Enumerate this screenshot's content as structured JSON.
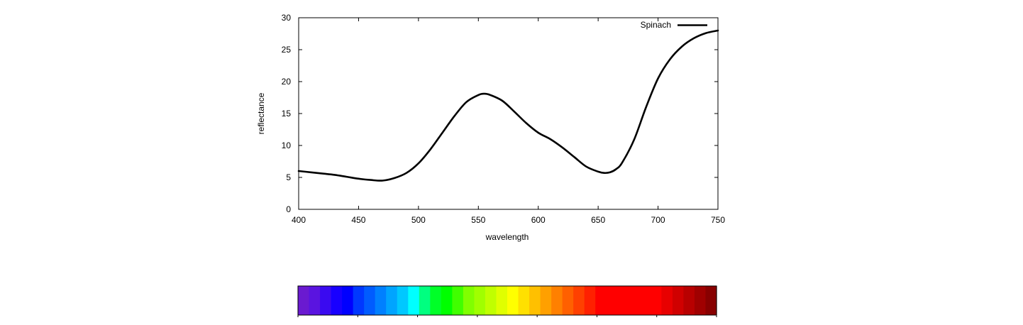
{
  "chart_data": {
    "type": "line",
    "xlabel": "wavelength",
    "ylabel": "reflectance",
    "xlim": [
      400,
      750
    ],
    "ylim": [
      0,
      30
    ],
    "xticks": [
      400,
      450,
      500,
      550,
      600,
      650,
      700,
      750
    ],
    "yticks": [
      0,
      5,
      10,
      15,
      20,
      25,
      30
    ],
    "grid": false,
    "legend_position": "top-right",
    "series": [
      {
        "name": "Spinach",
        "color": "#000000",
        "x": [
          400,
          410,
          420,
          430,
          440,
          450,
          460,
          470,
          480,
          490,
          500,
          510,
          520,
          530,
          540,
          550,
          555,
          560,
          570,
          580,
          590,
          600,
          610,
          620,
          630,
          640,
          650,
          655,
          660,
          665,
          670,
          680,
          690,
          700,
          710,
          720,
          730,
          740,
          750
        ],
        "y": [
          6.0,
          5.8,
          5.6,
          5.4,
          5.1,
          4.8,
          4.6,
          4.5,
          4.9,
          5.7,
          7.2,
          9.4,
          12.0,
          14.6,
          16.8,
          17.9,
          18.1,
          17.9,
          17.0,
          15.3,
          13.5,
          12.0,
          11.0,
          9.7,
          8.2,
          6.7,
          5.9,
          5.7,
          5.8,
          6.3,
          7.3,
          10.9,
          16.0,
          20.5,
          23.5,
          25.5,
          26.8,
          27.6,
          28.0
        ]
      }
    ]
  },
  "spectrum_bar": {
    "colors": [
      "#6a1ad0",
      "#5a14e0",
      "#3a0af0",
      "#1800ff",
      "#0000ff",
      "#0038ff",
      "#005cff",
      "#0080ff",
      "#00a4ff",
      "#00c8ff",
      "#00ffff",
      "#00ff80",
      "#00ff28",
      "#00ff00",
      "#40ff00",
      "#80ff00",
      "#a0ff00",
      "#c0ff00",
      "#e0ff00",
      "#ffff00",
      "#ffe000",
      "#ffc000",
      "#ffa000",
      "#ff8000",
      "#ff6000",
      "#ff4000",
      "#ff2000",
      "#ff0000",
      "#ff0000",
      "#ff0000",
      "#ff0000",
      "#ff0000",
      "#ff0000",
      "#e80000",
      "#d00000",
      "#b80000",
      "#a00000",
      "#880000"
    ]
  }
}
